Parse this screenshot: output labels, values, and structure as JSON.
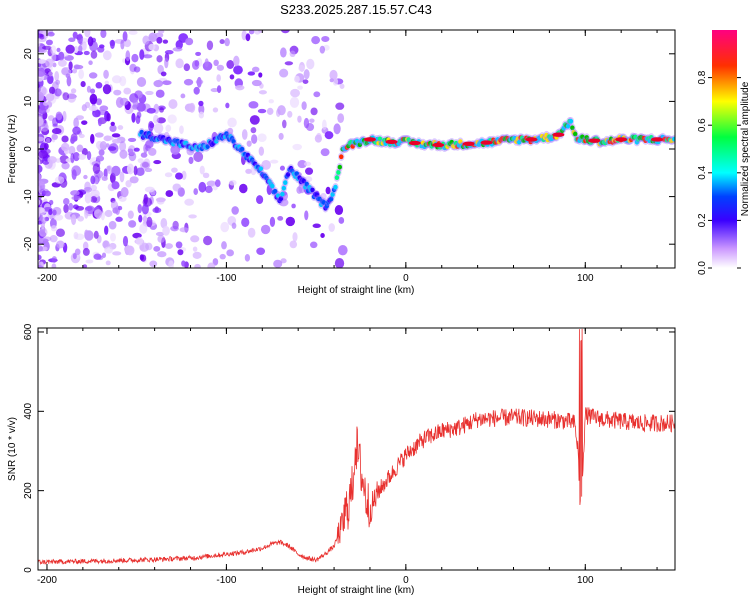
{
  "title": "S233.2025.287.15.57.C43",
  "colors": {
    "snr_line": "#e8302e",
    "axis": "#000000"
  },
  "chart_data": [
    {
      "type": "heatmap",
      "panel": "spectrogram",
      "xlabel": "Height of straight line (km)",
      "ylabel": "Frequency (Hz)",
      "xlim": [
        -205,
        150
      ],
      "ylim": [
        -25,
        25
      ],
      "xticks": [
        -200,
        -100,
        0,
        100
      ],
      "xtick_labels": [
        "-200",
        "-100",
        "0",
        "100"
      ],
      "yticks": [
        -20,
        -10,
        0,
        10,
        20
      ],
      "ytick_labels": [
        "-20",
        "-10",
        "0",
        "10",
        "20"
      ],
      "colorbar": {
        "label": "Normalized spectral amplitude",
        "range": [
          0,
          1
        ],
        "ticks": [
          0.0,
          0.2,
          0.4,
          0.6,
          0.8
        ],
        "tick_labels": [
          "0.0",
          "0.2",
          "0.4",
          "0.6",
          "0.8"
        ]
      },
      "ridge": {
        "x": [
          -145,
          -135,
          -125,
          -115,
          -105,
          -100,
          -95,
          -90,
          -85,
          -80,
          -75,
          -70,
          -65,
          -60,
          -55,
          -50,
          -45,
          -40,
          -35,
          -30,
          -20,
          -10,
          0,
          10,
          20,
          30,
          40,
          50,
          60,
          70,
          80,
          85,
          90,
          92,
          95,
          100,
          110,
          120,
          130,
          140,
          150
        ],
        "y": [
          3,
          2,
          1,
          0,
          2,
          3,
          1,
          -1,
          -3,
          -5,
          -8,
          -11,
          -4,
          -6,
          -8,
          -10,
          -12,
          -9,
          0,
          1,
          2,
          1.5,
          1.5,
          1,
          0.8,
          1,
          1.2,
          1.5,
          2,
          2,
          2.5,
          3,
          5,
          6,
          2,
          2,
          1.5,
          2,
          2,
          2,
          2
        ]
      }
    },
    {
      "type": "line",
      "panel": "snr",
      "xlabel": "Height of straight line (km)",
      "ylabel": "SNR (10 * v/v)",
      "xlim": [
        -205,
        150
      ],
      "ylim": [
        0,
        610
      ],
      "xticks": [
        -200,
        -100,
        0,
        100
      ],
      "xtick_labels": [
        "-200",
        "-100",
        "0",
        "100"
      ],
      "yticks": [
        0,
        200,
        400,
        600
      ],
      "ytick_labels": [
        "0",
        "200",
        "400",
        "600"
      ],
      "envelope": {
        "x": [
          -205,
          -180,
          -150,
          -120,
          -100,
          -90,
          -80,
          -75,
          -70,
          -65,
          -60,
          -55,
          -50,
          -45,
          -40,
          -35,
          -30,
          -28,
          -25,
          -22,
          -20,
          -15,
          -10,
          -5,
          0,
          5,
          10,
          20,
          30,
          40,
          60,
          80,
          90,
          94,
          96,
          97,
          98,
          100,
          110,
          130,
          150
        ],
        "y": [
          20,
          22,
          25,
          30,
          40,
          45,
          55,
          65,
          70,
          60,
          40,
          30,
          25,
          40,
          60,
          120,
          200,
          320,
          250,
          180,
          150,
          200,
          230,
          260,
          290,
          310,
          330,
          350,
          360,
          380,
          385,
          380,
          375,
          370,
          300,
          180,
          200,
          390,
          380,
          370,
          370
        ]
      }
    }
  ]
}
